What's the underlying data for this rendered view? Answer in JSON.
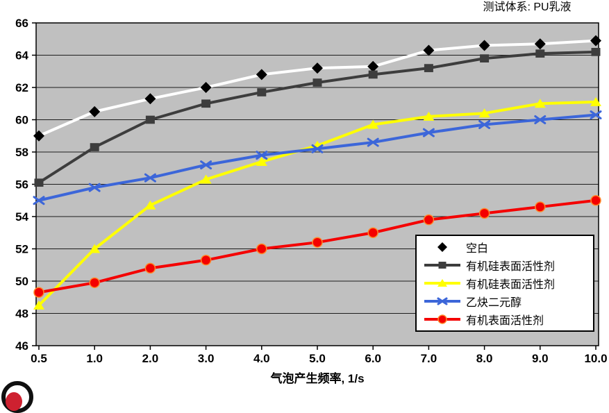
{
  "chart_data": {
    "type": "line",
    "title": "测试体系: PU乳液",
    "xlabel": "气泡产生频率, 1/s",
    "ylabel": "",
    "categories": [
      "0.5",
      "1.0",
      "2.0",
      "3.0",
      "4.0",
      "5.0",
      "6.0",
      "7.0",
      "8.0",
      "9.0",
      "10.0"
    ],
    "ylim": [
      46,
      66
    ],
    "ytick_step": 2,
    "grid": "horizontal",
    "legend_position": "inside-bottom-right",
    "plot_bg": "#c0c0c0",
    "gridline_color": "#1c1c1c",
    "axis_color": "#000000",
    "series": [
      {
        "name": "空白",
        "marker": "diamond",
        "marker_color": "#000000",
        "line_color": "#ffffff",
        "legend_line": false,
        "values": [
          59.0,
          60.5,
          61.3,
          62.0,
          62.8,
          63.2,
          63.3,
          64.3,
          64.6,
          64.7,
          64.9
        ]
      },
      {
        "name": "有机硅表面活性剂",
        "marker": "square",
        "marker_color": "#3d3d3d",
        "line_color": "#3d3d3d",
        "legend_line": true,
        "values": [
          56.1,
          58.3,
          60.0,
          61.0,
          61.7,
          62.3,
          62.8,
          63.2,
          63.8,
          64.1,
          64.2
        ]
      },
      {
        "name": "有机硅表面活性剂",
        "marker": "triangle",
        "marker_color": "#ffff00",
        "line_color": "#ffff00",
        "legend_line": true,
        "values": [
          48.5,
          52.0,
          54.7,
          56.3,
          57.4,
          58.4,
          59.7,
          60.2,
          60.4,
          61.0,
          61.1
        ]
      },
      {
        "name": "乙炔二元醇",
        "marker": "x",
        "marker_color": "#3c66d9",
        "line_color": "#3c66d9",
        "legend_line": true,
        "values": [
          55.0,
          55.8,
          56.4,
          57.2,
          57.8,
          58.2,
          58.6,
          59.2,
          59.7,
          60.0,
          60.3
        ]
      },
      {
        "name": "有机表面活性剂",
        "marker": "circle",
        "marker_color": "#f40000",
        "marker_edge": "#ff8a2a",
        "line_color": "#f40000",
        "legend_line": true,
        "values": [
          49.3,
          49.9,
          50.8,
          51.3,
          52.0,
          52.4,
          53.0,
          53.8,
          54.2,
          54.6,
          55.0
        ]
      }
    ]
  }
}
